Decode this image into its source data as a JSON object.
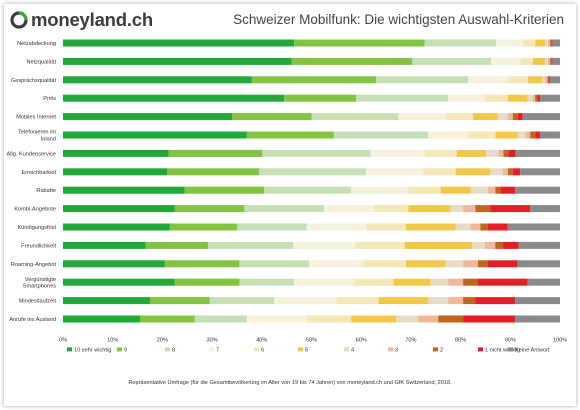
{
  "header": {
    "logo_text": "moneyland.ch",
    "title": "Schweizer Mobilfunk: Die wichtigsten Auswahl-Kriterien"
  },
  "footnote": "Repräsentative Umfrage (für die Gesamtbevölkerung im Alter von 19 bis 74 Jahren) von moneyland.ch und GfK Switzerland, 2018.",
  "colors": {
    "brand_green": "#3aaa35",
    "ring_dark": "#3c3c3c"
  },
  "chart_data": {
    "type": "bar",
    "orientation": "horizontal",
    "stacked": true,
    "title": "Schweizer Mobilfunk: Die wichtigsten Auswahl-Kriterien",
    "xlim": [
      0,
      100
    ],
    "x_ticks": [
      "0%",
      "10%",
      "20%",
      "30%",
      "40%",
      "50%",
      "60%",
      "70%",
      "80%",
      "90%",
      "100%"
    ],
    "grid": false,
    "legend_position": "bottom",
    "categories": [
      [
        "Netzabdeckung"
      ],
      [
        "Netzqualität"
      ],
      [
        "Gesprächsqualität"
      ],
      [
        "Preis"
      ],
      [
        "Mobiles Internet"
      ],
      [
        "Telefonieren im",
        "Inland"
      ],
      [
        "Allg. Kundenservice"
      ],
      [
        "Erreichbarkeit"
      ],
      [
        "Rabatte"
      ],
      [
        "Kombi-Angebote"
      ],
      [
        "Kündigungsfrist"
      ],
      [
        "Freundlichkeit"
      ],
      [
        "Roaming-Angebot"
      ],
      [
        "Vergünstigte",
        "Smartphones"
      ],
      [
        "Mindestlaufzeit"
      ],
      [
        "Anrufe ins Ausland"
      ]
    ],
    "series": [
      {
        "name": "10 sehr wichtig",
        "color": "#22a838",
        "values": [
          47,
          46.5,
          38,
          44.5,
          34,
          37,
          21.5,
          21,
          24.5,
          22.5,
          21.5,
          16,
          20.5,
          22.5,
          17.5,
          15.5
        ]
      },
      {
        "name": "9",
        "color": "#82c342",
        "values": [
          26.5,
          24.5,
          25,
          14.5,
          16,
          17.5,
          19,
          18.5,
          16,
          14,
          13.5,
          12,
          15,
          13,
          12,
          11
        ]
      },
      {
        "name": "8",
        "color": "#c6dfb5",
        "values": [
          14.5,
          16,
          18.5,
          18.5,
          17.5,
          19,
          22,
          21.5,
          17.5,
          16,
          14,
          16.5,
          14,
          11,
          13,
          10.5
        ]
      },
      {
        "name": "7",
        "color": "#f7f2dd",
        "values": [
          5.5,
          6,
          8,
          7.5,
          9.5,
          8,
          11,
          11.5,
          11.5,
          10,
          12,
          12,
          11,
          12,
          12.5,
          12
        ]
      },
      {
        "name": "6",
        "color": "#f4e7b8",
        "values": [
          2.5,
          2.5,
          4,
          4.5,
          5.5,
          5.5,
          6.5,
          6.5,
          6.5,
          7,
          8,
          9.5,
          8.5,
          8,
          8.5,
          9
        ]
      },
      {
        "name": "5",
        "color": "#f2c84a",
        "values": [
          2,
          2.5,
          3,
          4,
          5,
          4.5,
          6,
          7,
          6,
          8.5,
          10,
          13,
          8,
          7.5,
          10,
          9
        ]
      },
      {
        "name": "4",
        "color": "#e6dcc6",
        "values": [
          0.5,
          0.5,
          0.5,
          1,
          2,
          1.5,
          2.5,
          2.5,
          3.5,
          2.5,
          3,
          2.5,
          3.5,
          3.5,
          4,
          4.5
        ]
      },
      {
        "name": "3",
        "color": "#f0b89a",
        "values": [
          0.5,
          0.5,
          0.5,
          0.5,
          1,
          1,
          1,
          1,
          1.5,
          2.5,
          2,
          2,
          3,
          3,
          3,
          4
        ]
      },
      {
        "name": "2",
        "color": "#c0641f",
        "values": [
          0.3,
          0.3,
          0.3,
          0.5,
          1,
          1,
          1,
          1,
          1,
          3,
          1.5,
          1.5,
          2,
          3,
          2.5,
          5
        ]
      },
      {
        "name": "1 nicht wichtig",
        "color": "#e41e26",
        "values": [
          0.2,
          0.2,
          0.2,
          0.5,
          1,
          1,
          1.5,
          1.5,
          3,
          8,
          4,
          3,
          6,
          10,
          8,
          10.5
        ]
      },
      {
        "name": "Keine Antwort",
        "color": "#8a8a8a",
        "values": [
          1.5,
          1.5,
          2,
          4,
          7.5,
          4,
          9,
          8,
          9,
          6,
          10.5,
          8,
          8.5,
          6.5,
          9,
          9
        ]
      }
    ]
  }
}
